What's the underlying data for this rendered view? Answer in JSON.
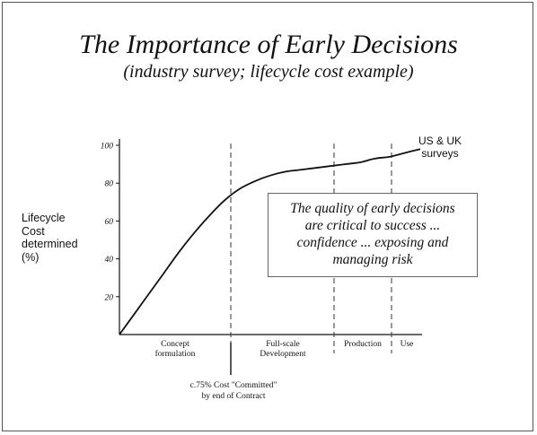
{
  "slide": {
    "title": "The Importance of Early Decisions",
    "subtitle": "(industry survey; lifecycle cost example)"
  },
  "chart_data": {
    "type": "line",
    "ylabel_lines": [
      "Lifecycle",
      "Cost",
      "determined",
      "(%)"
    ],
    "yticks": [
      "20",
      "40",
      "60",
      "80",
      "100"
    ],
    "ylim": [
      0,
      100
    ],
    "grid": false,
    "series": [
      {
        "name": "US & UK surveys",
        "name_lines": [
          "US & UK",
          "surveys"
        ],
        "color": "#111111",
        "x": [
          0,
          0.05,
          0.1,
          0.15,
          0.2,
          0.25,
          0.3,
          0.35,
          0.4,
          0.45,
          0.5,
          0.55,
          0.6,
          0.65,
          0.7,
          0.75,
          0.8,
          0.85,
          0.9,
          0.95,
          1.0
        ],
        "values": [
          0,
          11,
          22,
          33,
          44,
          54,
          63,
          71,
          77,
          81,
          84,
          86,
          87,
          88,
          89,
          90,
          91,
          93,
          94,
          96,
          98
        ]
      }
    ],
    "phases": [
      {
        "label_lines": [
          "Concept",
          "formulation"
        ]
      },
      {
        "label_lines": [
          "Full-scale",
          "Development"
        ]
      },
      {
        "label_lines": [
          "Production"
        ]
      },
      {
        "label_lines": [
          "Use"
        ]
      }
    ],
    "annotation_lines": [
      "c.75% Cost \"Committed\"",
      "by end of Contract"
    ],
    "callout_lines": [
      "The quality of early decisions",
      "are critical to success ...",
      "confidence ... exposing and",
      "managing risk"
    ]
  }
}
